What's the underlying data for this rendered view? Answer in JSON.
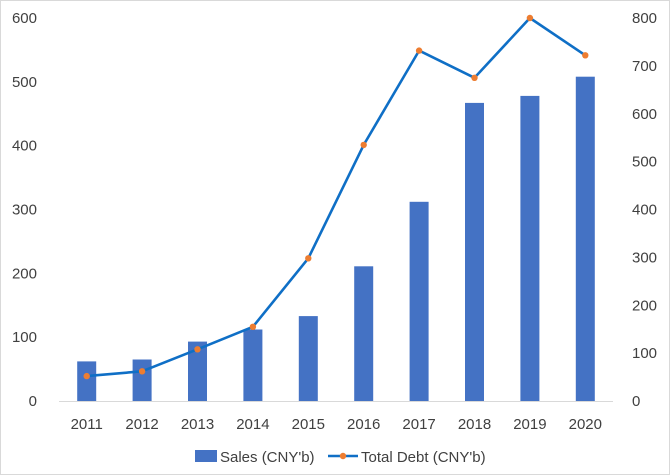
{
  "chart_data": {
    "type": "bar+line",
    "categories": [
      "2011",
      "2012",
      "2013",
      "2014",
      "2015",
      "2016",
      "2017",
      "2018",
      "2019",
      "2020"
    ],
    "series": [
      {
        "name": "Sales (CNY'b)",
        "type": "bar",
        "axis": "left",
        "color": "#4472c4",
        "values": [
          62,
          65,
          93,
          112,
          133,
          211,
          312,
          467,
          478,
          508
        ]
      },
      {
        "name": "Total Debt (CNY'b)",
        "type": "line",
        "axis": "right",
        "color": "#0f6fc6",
        "marker_color": "#ed7d31",
        "values": [
          52,
          62,
          108,
          155,
          298,
          535,
          732,
          675,
          800,
          722
        ]
      }
    ],
    "y_left": {
      "min": 0,
      "max": 600,
      "ticks": [
        0,
        100,
        200,
        300,
        400,
        500,
        600
      ]
    },
    "y_right": {
      "min": 0,
      "max": 800,
      "ticks": [
        0,
        100,
        200,
        300,
        400,
        500,
        600,
        700,
        800
      ]
    },
    "grid": false,
    "legend_position": "bottom",
    "title": "",
    "xlabel": "",
    "ylabel": ""
  }
}
